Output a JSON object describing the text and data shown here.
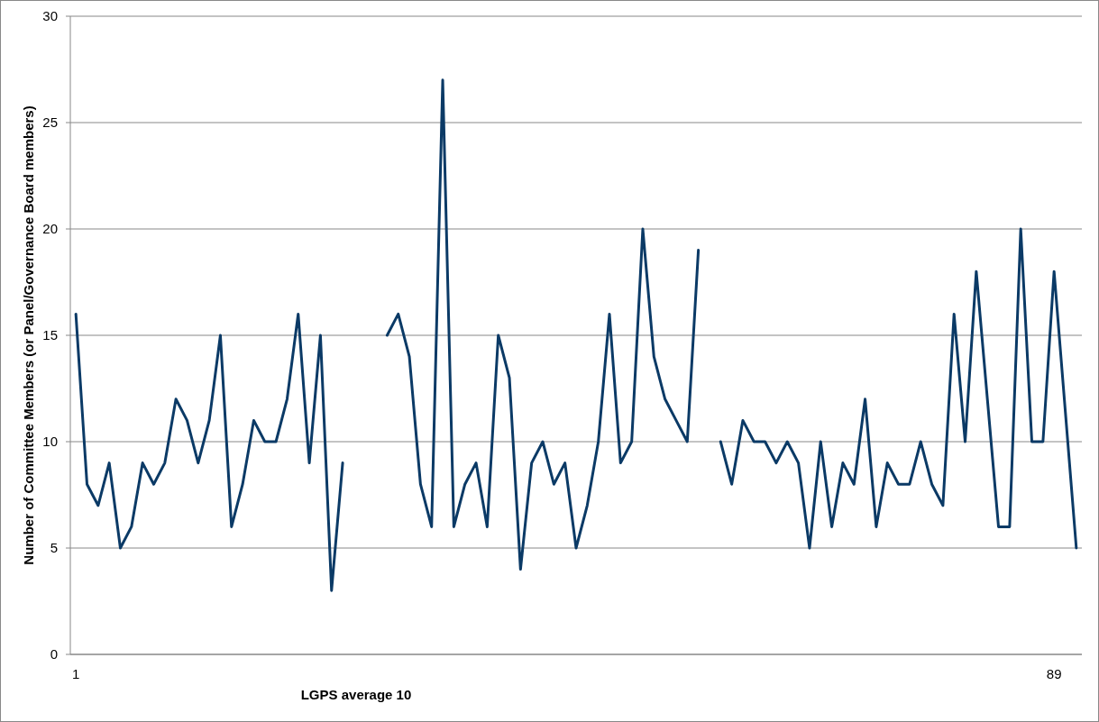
{
  "chart_data": {
    "type": "line",
    "xlabel": "LGPS average 10",
    "ylabel": "Number of Committee Members (or Panel/Governance Board members)",
    "categories": [
      "1",
      null,
      null,
      null,
      null,
      null,
      null,
      null,
      null,
      null,
      null,
      null,
      null,
      null,
      null,
      null,
      null,
      null,
      null,
      null,
      null,
      null,
      null,
      null,
      null,
      null,
      null,
      null,
      null,
      null,
      null,
      null,
      null,
      null,
      null,
      null,
      null,
      null,
      null,
      null,
      null,
      null,
      null,
      null,
      null,
      null,
      null,
      null,
      null,
      null,
      null,
      null,
      null,
      null,
      null,
      null,
      null,
      null,
      null,
      null,
      null,
      null,
      null,
      null,
      null,
      null,
      null,
      null,
      null,
      null,
      null,
      null,
      null,
      null,
      null,
      null,
      null,
      null,
      null,
      null,
      null,
      null,
      null,
      null,
      null,
      null,
      null,
      null,
      "89",
      null,
      null
    ],
    "series": [
      {
        "color": "#0b3a66",
        "values": [
          16,
          8,
          7,
          9,
          5,
          6,
          9,
          8,
          9,
          12,
          11,
          9,
          11,
          15,
          6,
          8,
          11,
          10,
          10,
          12,
          16,
          9,
          15,
          3,
          9,
          null,
          null,
          null,
          15,
          16,
          14,
          8,
          6,
          27,
          6,
          8,
          9,
          6,
          15,
          13,
          4,
          9,
          10,
          8,
          9,
          5,
          7,
          10,
          16,
          9,
          10,
          20,
          14,
          12,
          11,
          10,
          19,
          null,
          10,
          8,
          11,
          10,
          10,
          9,
          10,
          9,
          5,
          10,
          6,
          9,
          8,
          12,
          6,
          9,
          8,
          8,
          10,
          8,
          7,
          16,
          10,
          18,
          12,
          6,
          6,
          20,
          10,
          10,
          18,
          11.5,
          5
        ]
      }
    ],
    "ylim": [
      0,
      30
    ],
    "yticks": [
      0,
      5,
      10,
      15,
      20,
      25,
      30
    ],
    "grid": "y",
    "marker": "none",
    "line_style": "solid"
  }
}
